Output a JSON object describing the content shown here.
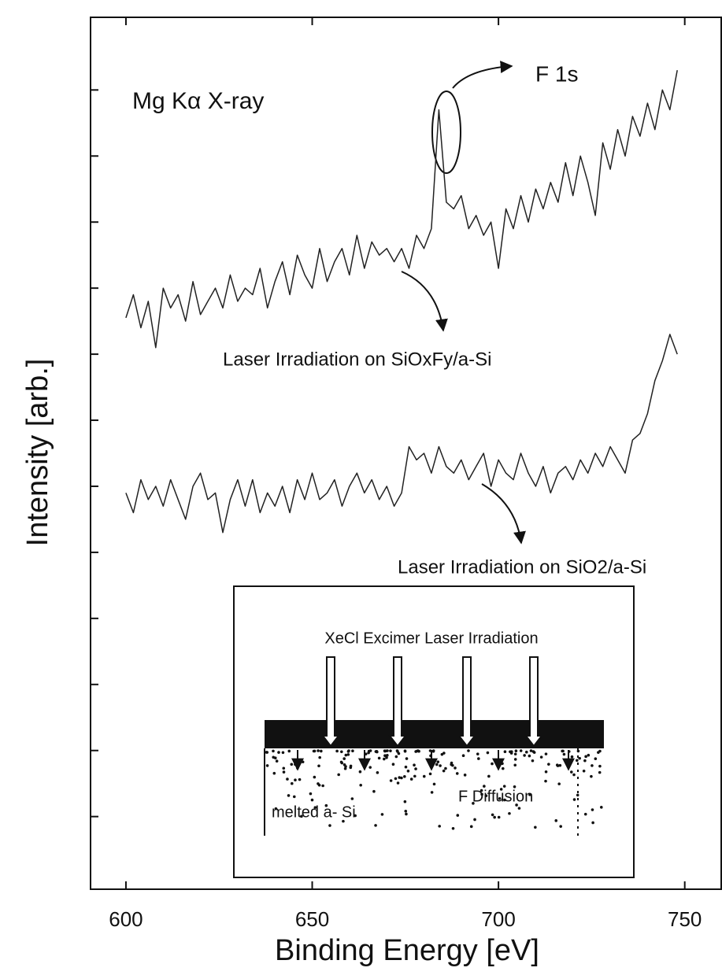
{
  "chart_data": {
    "type": "line",
    "xlabel": "Binding Energy [eV]",
    "ylabel": "Intensity [arb.]",
    "annotations": [
      "Mg Kα X-ray",
      "F 1s"
    ],
    "xlim": [
      590.5,
      760
    ],
    "xticks": [
      600,
      650,
      700,
      750
    ],
    "ylim": [
      -0.1,
      13.1
    ],
    "yticks": [
      1,
      2,
      3,
      4,
      5,
      6,
      7,
      8,
      9,
      10,
      11,
      12
    ],
    "x": [
      600,
      602,
      604,
      606,
      608,
      610,
      612,
      614,
      616,
      618,
      620,
      622,
      624,
      626,
      628,
      630,
      632,
      634,
      636,
      638,
      640,
      642,
      644,
      646,
      648,
      650,
      652,
      654,
      656,
      658,
      660,
      662,
      664,
      666,
      668,
      670,
      672,
      674,
      676,
      678,
      680,
      682,
      684,
      686,
      688,
      690,
      692,
      694,
      696,
      698,
      700,
      702,
      704,
      706,
      708,
      710,
      712,
      714,
      716,
      718,
      720,
      722,
      724,
      726,
      728,
      730,
      732,
      734,
      736,
      738,
      740,
      742,
      744,
      746,
      748
    ],
    "series": [
      {
        "name": "Laser Irradiation on SiOxFy/a-Si",
        "color": "#222222",
        "values": [
          8.55,
          8.9,
          8.4,
          8.8,
          8.1,
          9.0,
          8.7,
          8.9,
          8.5,
          9.1,
          8.6,
          8.8,
          9.0,
          8.7,
          9.2,
          8.8,
          9.0,
          8.9,
          9.3,
          8.7,
          9.1,
          9.4,
          8.9,
          9.5,
          9.2,
          9.0,
          9.6,
          9.1,
          9.4,
          9.6,
          9.2,
          9.8,
          9.3,
          9.7,
          9.5,
          9.6,
          9.4,
          9.6,
          9.3,
          9.8,
          9.6,
          9.9,
          11.7,
          10.3,
          10.2,
          10.4,
          9.9,
          10.1,
          9.8,
          10.0,
          9.3,
          10.2,
          9.9,
          10.4,
          10.0,
          10.5,
          10.2,
          10.6,
          10.3,
          10.9,
          10.4,
          11.0,
          10.6,
          10.1,
          11.2,
          10.8,
          11.4,
          11.0,
          11.6,
          11.3,
          11.8,
          11.4,
          12.0,
          11.7,
          12.3
        ]
      },
      {
        "name": "Laser Irradiation on SiO2/a-Si",
        "color": "#222222",
        "values": [
          5.9,
          5.6,
          6.1,
          5.8,
          6.0,
          5.7,
          6.1,
          5.8,
          5.5,
          6.0,
          6.2,
          5.8,
          5.9,
          5.3,
          5.8,
          6.1,
          5.7,
          6.1,
          5.6,
          5.9,
          5.7,
          6.0,
          5.6,
          6.1,
          5.8,
          6.2,
          5.8,
          5.9,
          6.1,
          5.7,
          6.0,
          6.2,
          5.9,
          6.1,
          5.8,
          6.0,
          5.7,
          5.9,
          6.6,
          6.4,
          6.5,
          6.2,
          6.6,
          6.3,
          6.2,
          6.4,
          6.1,
          6.3,
          6.5,
          6.0,
          6.4,
          6.2,
          6.1,
          6.5,
          6.2,
          6.0,
          6.3,
          5.9,
          6.2,
          6.3,
          6.1,
          6.4,
          6.2,
          6.5,
          6.3,
          6.6,
          6.4,
          6.2,
          6.7,
          6.8,
          7.1,
          7.6,
          7.9,
          8.3,
          8.0
        ]
      }
    ],
    "inset": {
      "title": "XeCl Excimer Laser Irradiation",
      "labels": [
        "F Diffusion",
        "melted a- Si"
      ]
    }
  }
}
